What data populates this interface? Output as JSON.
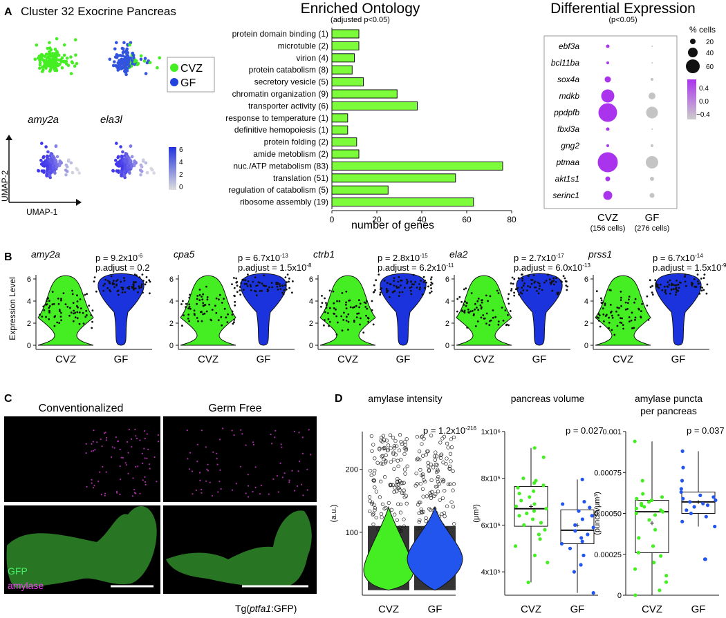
{
  "colors": {
    "cvz": "#44ee22",
    "gf": "#2244dd",
    "magenta": "#ee44ee",
    "grey": "#bbbbbb",
    "bar": "#7CFC3A"
  },
  "panels": {
    "a": "A",
    "b": "B",
    "c": "C",
    "d": "D"
  },
  "panel_a": {
    "umap_title": "Cluster 32 Exocrine Pancreas",
    "gene1": "amy2a",
    "gene2": "ela3l",
    "legend": [
      "CVZ",
      "GF"
    ],
    "axis_x": "UMAP-1",
    "axis_y": "UMAP-2",
    "scale_ticks": [
      "6",
      "4",
      "2",
      "0"
    ]
  },
  "ontology": {
    "title": "Enriched Ontology",
    "subtitle": "(adjusted p<0.05)",
    "xlabel": "number of genes",
    "xticks": [
      "0",
      "20",
      "40",
      "60",
      "80"
    ]
  },
  "diffexp": {
    "title": "Differential Expression",
    "subtitle": "(p<0.05)",
    "size_legend_title": "% cells",
    "size_legend": [
      "20",
      "40",
      "60"
    ],
    "color_legend": [
      "0.4",
      "0.0",
      "−0.4"
    ],
    "genes": [
      "ebf3a",
      "bcl11ba",
      "sox4a",
      "mdkb",
      "ppdpfb",
      "fbxl3a",
      "gng2",
      "ptmaa",
      "akt1s1",
      "serinc1"
    ],
    "cvz_size": [
      5,
      4,
      9,
      19,
      27,
      5,
      4,
      29,
      7,
      13
    ],
    "gf_size": [
      2,
      2,
      4,
      10,
      17,
      1,
      4,
      18,
      6,
      7
    ],
    "groups": [
      "CVZ",
      "GF"
    ],
    "group_counts": [
      "(156 cells)",
      "(276 cells)"
    ]
  },
  "panel_b": {
    "ylabel": "Expression Level",
    "yticks": [
      "0",
      "2",
      "4",
      "6"
    ],
    "xlabels": [
      "CVZ",
      "GF"
    ],
    "plots": [
      {
        "gene": "amy2a",
        "p": "p = 9.2x10",
        "p_exp": "-6",
        "padj": "p.adjust = 0.2",
        "padj_exp": ""
      },
      {
        "gene": "cpa5",
        "p": "p = 6.7x10",
        "p_exp": "-13",
        "padj": "p.adjust = 1.5x10",
        "padj_exp": "-8"
      },
      {
        "gene": "ctrb1",
        "p": "p = 2.8x10",
        "p_exp": "-15",
        "padj": "p.adjust = 6.2x10",
        "padj_exp": "-11"
      },
      {
        "gene": "ela2",
        "p": "p = 2.7x10",
        "p_exp": "-17",
        "padj": "p.adjust = 6.0x10",
        "padj_exp": "-13"
      },
      {
        "gene": "prss1",
        "p": "p = 6.7x10",
        "p_exp": "-14",
        "padj": "p.adjust = 1.5x10",
        "padj_exp": "-9"
      }
    ]
  },
  "panel_c": {
    "title_left": "Conventionalized",
    "title_right": "Germ Free",
    "label_gfp": "GFP",
    "label_amylase": "amylase",
    "caption_pre": "Tg(",
    "caption_gene": "ptfa1",
    "caption_post": ":GFP)"
  },
  "panel_d": {
    "plots": [
      {
        "title": "amylase intensity",
        "title2": "",
        "p": "p = 1.2x10",
        "p_exp": "-216",
        "ylabel": "(a.u.)",
        "yticks": [
          "100",
          "200"
        ]
      },
      {
        "title": "pancreas volume",
        "title2": "",
        "p": "p = 0.027",
        "p_exp": "",
        "ylabel": "(μm³)",
        "yticks": [
          "4x10⁵",
          "6x10⁵",
          "8x10⁵",
          "1x10⁶"
        ]
      },
      {
        "title": "amylase puncta",
        "title2": "per pancreas",
        "p": "p = 0.037",
        "p_exp": "",
        "ylabel": "(puncta/μm³)",
        "yticks": [
          "0",
          "0.00025",
          "0.00050",
          "0.00075",
          "0.001"
        ]
      }
    ],
    "xlabels": [
      "CVZ",
      "GF"
    ]
  },
  "chart_data": [
    {
      "type": "bar",
      "title": "Enriched Ontology",
      "subtitle": "(adjusted p<0.05)",
      "orientation": "horizontal",
      "categories": [
        "protein domain binding (1)",
        "microtuble (2)",
        "virion (4)",
        "protein catabolism (8)",
        "secretory vesicle (5)",
        "chromatin organization (9)",
        "transporter activity (6)",
        "response to temperature (1)",
        "definitive hemopoiesis (1)",
        "protein folding (2)",
        "amide metoblism (2)",
        "nuc./ATP metabolism (83)",
        "translation (51)",
        "regulation of catabolism (5)",
        "ribosome assembly (19)"
      ],
      "values": [
        12,
        12,
        10,
        9,
        14,
        29,
        38,
        7,
        7,
        11,
        12,
        76,
        55,
        25,
        63
      ],
      "xlabel": "number of genes",
      "xlim": [
        0,
        80
      ]
    },
    {
      "type": "box",
      "title": "pancreas volume",
      "ylabel": "(μm³)",
      "ylim": [
        300000,
        1000000
      ],
      "series": [
        {
          "name": "CVZ",
          "q1": 595000,
          "median": 670000,
          "q3": 765000,
          "whisker_low": 355000,
          "whisker_high": 930000,
          "mean": 680000
        },
        {
          "name": "GF",
          "q1": 520000,
          "median": 578000,
          "q3": 665000,
          "whisker_low": 310000,
          "whisker_high": 795000,
          "mean": 600000
        }
      ],
      "points": {
        "CVZ": [
          930000,
          890000,
          800000,
          790000,
          780000,
          770000,
          760000,
          745000,
          735000,
          720000,
          705000,
          690000,
          680000,
          670000,
          660000,
          650000,
          640000,
          625000,
          610000,
          600000,
          580000,
          560000,
          540000,
          510000,
          470000,
          440000,
          355000
        ],
        "GF": [
          795000,
          700000,
          690000,
          675000,
          660000,
          640000,
          625000,
          600000,
          590000,
          575000,
          560000,
          545000,
          530000,
          520000,
          500000,
          470000,
          430000,
          400000,
          310000
        ]
      }
    },
    {
      "type": "box",
      "title": "amylase puncta per pancreas",
      "ylabel": "(puncta/μm³)",
      "ylim": [
        0,
        0.001
      ],
      "series": [
        {
          "name": "CVZ",
          "q1": 0.00026,
          "median": 0.00051,
          "q3": 0.00058,
          "whisker_low": 0.0,
          "whisker_high": 0.00094,
          "mean": 0.00044
        },
        {
          "name": "GF",
          "q1": 0.0005,
          "median": 0.00057,
          "q3": 0.00063,
          "whisker_low": 0.00042,
          "whisker_high": 0.00088,
          "mean": 0.00057
        }
      ],
      "points": {
        "CVZ": [
          0.00094,
          0.0007,
          0.00062,
          0.0006,
          0.00059,
          0.00058,
          0.00057,
          0.00056,
          0.00055,
          0.00054,
          0.00053,
          0.00052,
          0.00051,
          0.0005,
          0.00049,
          0.00046,
          0.0004,
          0.00035,
          0.0003,
          0.00026,
          0.00024,
          0.0002,
          0.00016,
          0.00012,
          8e-05,
          3e-05,
          0.0
        ],
        "GF": [
          0.00088,
          0.00078,
          0.0007,
          0.00065,
          0.00063,
          0.00061,
          0.0006,
          0.00059,
          0.00058,
          0.00057,
          0.00056,
          0.00055,
          0.00054,
          0.00052,
          0.0005,
          0.00048,
          0.00045,
          0.00042,
          0.00022,
          0.00022
        ]
      }
    }
  ]
}
